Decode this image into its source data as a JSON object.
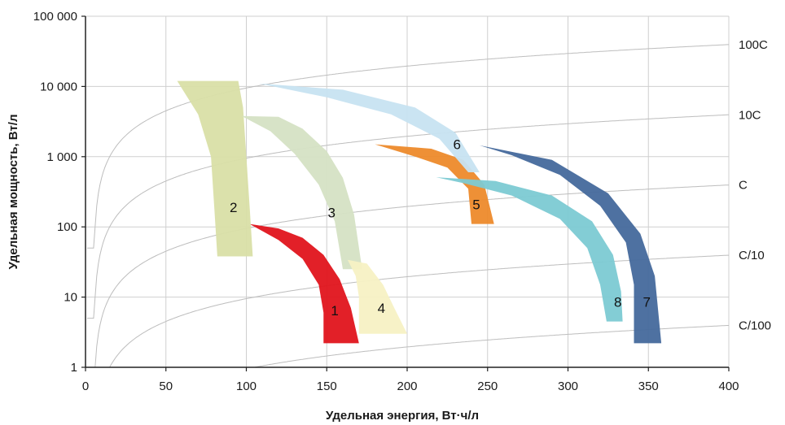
{
  "chart_data": {
    "type": "area",
    "title": "",
    "xlabel": "Удельная энергия, Вт·ч/л",
    "ylabel": "Удельная мощность, Вт/л",
    "xlim": [
      0,
      400
    ],
    "ylim": [
      1,
      100000
    ],
    "y_scale": "log",
    "grid": true,
    "x_ticks": [
      "0",
      "50",
      "100",
      "150",
      "200",
      "250",
      "300",
      "350",
      "400"
    ],
    "x_tick_values": [
      0,
      50,
      100,
      150,
      200,
      250,
      300,
      350,
      400
    ],
    "y_ticks": [
      "1",
      "10",
      "100",
      "1 000",
      "10 000",
      "100 000"
    ],
    "y_tick_values": [
      1,
      10,
      100,
      1000,
      10000,
      100000
    ],
    "rate_lines": [
      {
        "label": "100C",
        "ratio": 100
      },
      {
        "label": "10C",
        "ratio": 10
      },
      {
        "label": "C",
        "ratio": 1
      },
      {
        "label": "C/10",
        "ratio": 0.1
      },
      {
        "label": "C/100",
        "ratio": 0.01
      }
    ],
    "regions": [
      {
        "label": "1",
        "color": "#e0141c",
        "outer": [
          [
            102,
            110
          ],
          [
            120,
            95
          ],
          [
            135,
            70
          ],
          [
            148,
            40
          ],
          [
            158,
            18
          ],
          [
            165,
            7
          ],
          [
            170,
            2.2
          ]
        ],
        "inner": [
          [
            148,
            2.2
          ],
          [
            148,
            6
          ],
          [
            145,
            15
          ],
          [
            135,
            35
          ],
          [
            120,
            65
          ],
          [
            102,
            110
          ]
        ],
        "label_at": [
          155,
          6.5
        ]
      },
      {
        "label": "2",
        "color": "#d9dfa6",
        "outer": [
          [
            57,
            12000
          ],
          [
            95,
            12000
          ],
          [
            98,
            5000
          ],
          [
            100,
            1000
          ],
          [
            102,
            200
          ],
          [
            104,
            38
          ]
        ],
        "inner": [
          [
            82,
            38
          ],
          [
            80,
            200
          ],
          [
            78,
            1000
          ],
          [
            70,
            4000
          ],
          [
            57,
            12000
          ]
        ],
        "label_at": [
          92,
          190
        ]
      },
      {
        "label": "3",
        "color": "#d5e2c4",
        "outer": [
          [
            97,
            3800
          ],
          [
            120,
            3700
          ],
          [
            135,
            2500
          ],
          [
            150,
            1200
          ],
          [
            160,
            500
          ],
          [
            167,
            150
          ],
          [
            172,
            25
          ]
        ],
        "inner": [
          [
            160,
            25
          ],
          [
            155,
            120
          ],
          [
            145,
            400
          ],
          [
            130,
            1100
          ],
          [
            115,
            2300
          ],
          [
            97,
            3800
          ]
        ],
        "label_at": [
          153,
          160
        ]
      },
      {
        "label": "4",
        "color": "#f7f1c4",
        "outer": [
          [
            163,
            34
          ],
          [
            175,
            30
          ],
          [
            185,
            15
          ],
          [
            192,
            7
          ],
          [
            200,
            3
          ]
        ],
        "inner": [
          [
            170,
            3
          ],
          [
            170,
            10
          ],
          [
            168,
            20
          ],
          [
            163,
            34
          ]
        ],
        "label_at": [
          184,
          7
        ]
      },
      {
        "label": "5",
        "color": "#ed8a2b",
        "outer": [
          [
            180,
            1500
          ],
          [
            215,
            1300
          ],
          [
            235,
            900
          ],
          [
            248,
            400
          ],
          [
            254,
            110
          ]
        ],
        "inner": [
          [
            240,
            110
          ],
          [
            238,
            350
          ],
          [
            225,
            700
          ],
          [
            205,
            1000
          ],
          [
            180,
            1500
          ]
        ],
        "label_at": [
          243,
          210
        ]
      },
      {
        "label": "6",
        "color": "#c7e3f1",
        "outer": [
          [
            108,
            11000
          ],
          [
            160,
            9000
          ],
          [
            205,
            5000
          ],
          [
            230,
            2200
          ],
          [
            245,
            600
          ]
        ],
        "inner": [
          [
            238,
            600
          ],
          [
            220,
            1800
          ],
          [
            190,
            4000
          ],
          [
            150,
            7000
          ],
          [
            108,
            11000
          ]
        ],
        "label_at": [
          231,
          1500
        ]
      },
      {
        "label": "8",
        "color": "#7ccad3",
        "outer": [
          [
            218,
            510
          ],
          [
            255,
            450
          ],
          [
            290,
            280
          ],
          [
            315,
            120
          ],
          [
            328,
            40
          ],
          [
            333,
            12
          ],
          [
            334,
            4.5
          ]
        ],
        "inner": [
          [
            324,
            4.5
          ],
          [
            320,
            15
          ],
          [
            312,
            50
          ],
          [
            295,
            130
          ],
          [
            265,
            280
          ],
          [
            235,
            420
          ],
          [
            218,
            510
          ]
        ],
        "label_at": [
          331,
          8.5
        ]
      },
      {
        "label": "7",
        "color": "#44699c",
        "outer": [
          [
            245,
            1450
          ],
          [
            290,
            900
          ],
          [
            325,
            300
          ],
          [
            345,
            80
          ],
          [
            354,
            20
          ],
          [
            358,
            2.2
          ]
        ],
        "inner": [
          [
            341,
            2.2
          ],
          [
            341,
            15
          ],
          [
            336,
            60
          ],
          [
            320,
            200
          ],
          [
            295,
            550
          ],
          [
            265,
            1050
          ],
          [
            245,
            1450
          ]
        ],
        "label_at": [
          349,
          8.5
        ]
      }
    ]
  }
}
